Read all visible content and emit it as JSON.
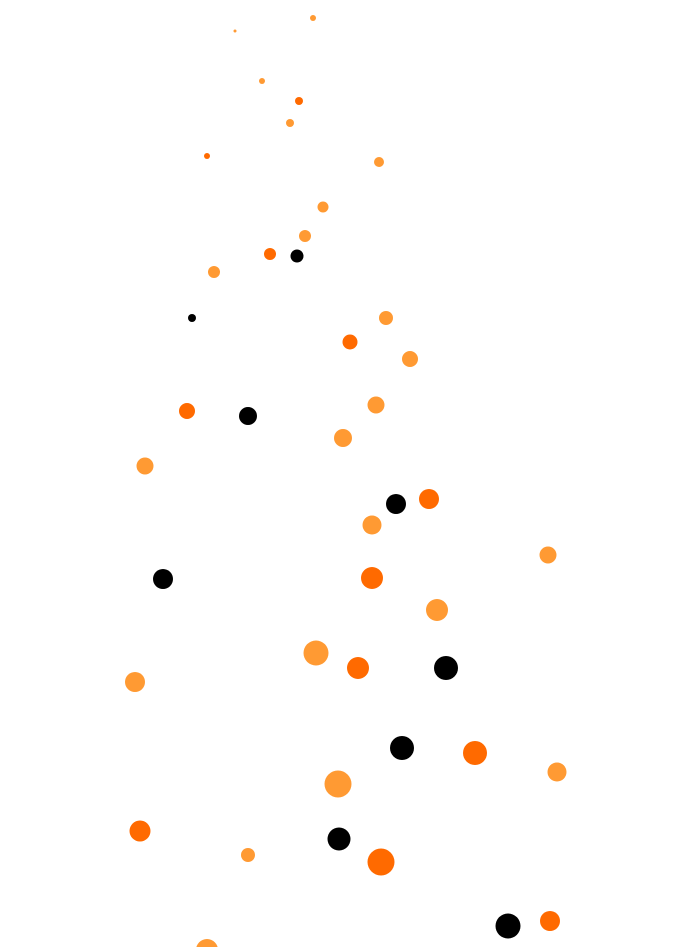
{
  "palette": {
    "background": "#ffffff",
    "dark_orange": "#ff6a00",
    "light_orange": "#ff9a33",
    "black": "#000000"
  },
  "dot_count": 43
}
